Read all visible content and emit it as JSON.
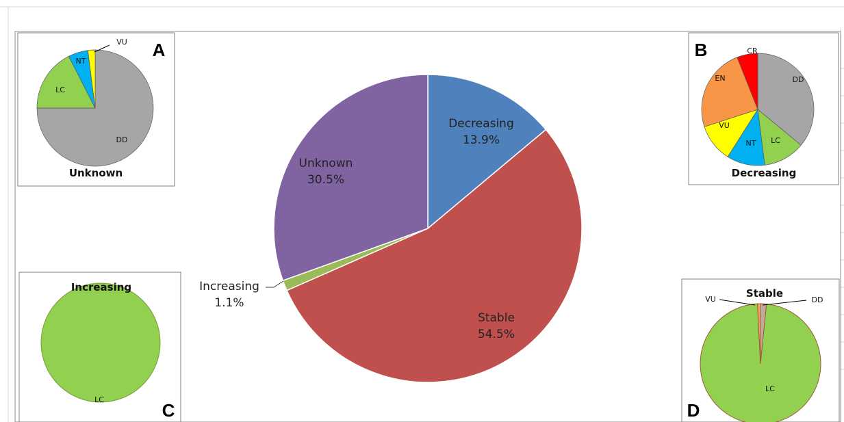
{
  "chart_data": [
    {
      "panel": "main",
      "type": "pie",
      "title": "",
      "slices": [
        {
          "label": "Decreasing",
          "value_label": "13.9%",
          "value": 13.9,
          "color": "#4f81bd"
        },
        {
          "label": "Stable",
          "value_label": "54.5%",
          "value": 54.5,
          "color": "#c0504d"
        },
        {
          "label": "Increasing",
          "value_label": "1.1%",
          "value": 1.1,
          "color": "#9bbb59"
        },
        {
          "label": "Unknown",
          "value_label": "30.5%",
          "value": 30.5,
          "color": "#8064a2"
        }
      ]
    },
    {
      "panel": "A",
      "type": "pie",
      "title": "Unknown",
      "letter": "A",
      "slices": [
        {
          "label": "DD",
          "value": 75,
          "color": "#a6a6a6"
        },
        {
          "label": "LC",
          "value": 17.5,
          "color": "#92d050"
        },
        {
          "label": "NT",
          "value": 5.5,
          "color": "#00b0f0"
        },
        {
          "label": "VU",
          "value": 2,
          "color": "#ffff00"
        }
      ]
    },
    {
      "panel": "B",
      "type": "pie",
      "title": "Decreasing",
      "letter": "B",
      "slices": [
        {
          "label": "DD",
          "value": 36,
          "color": "#a6a6a6"
        },
        {
          "label": "LC",
          "value": 12,
          "color": "#92d050"
        },
        {
          "label": "NT",
          "value": 11,
          "color": "#00b0f0"
        },
        {
          "label": "VU",
          "value": 11,
          "color": "#ffff00"
        },
        {
          "label": "EN",
          "value": 24,
          "color": "#f79646"
        },
        {
          "label": "CR",
          "value": 6,
          "color": "#ff0000"
        }
      ]
    },
    {
      "panel": "C",
      "type": "pie",
      "title": "Increasing",
      "letter": "C",
      "slices": [
        {
          "label": "LC",
          "value": 100,
          "color": "#92d050"
        }
      ]
    },
    {
      "panel": "D",
      "type": "pie",
      "title": "Stable",
      "letter": "D",
      "slices": [
        {
          "label": "DD",
          "value": 1.6,
          "color": "#c0a9a0"
        },
        {
          "label": "LC",
          "value": 97.6,
          "color": "#92d050"
        },
        {
          "label": "VU",
          "value": 0.8,
          "color": "#f2a65a"
        }
      ]
    }
  ]
}
